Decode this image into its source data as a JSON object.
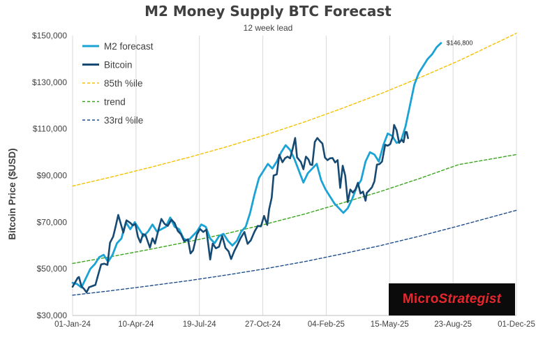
{
  "chart_data": {
    "type": "line",
    "title": "M2 Money Supply BTC Forecast",
    "subtitle": "12 week lead",
    "ylabel": "Bitcoin Price ($USD)",
    "xlabel": "",
    "ylim": [
      30000,
      150000
    ],
    "yticks": [
      30000,
      50000,
      70000,
      90000,
      110000,
      130000,
      150000
    ],
    "ytick_labels": [
      "$30,000",
      "$50,000",
      "$70,000",
      "$90,000",
      "$110,000",
      "$130,000",
      "$150,000"
    ],
    "xlim": [
      "2024-01-01",
      "2025-12-01"
    ],
    "xticks": [
      "2024-01-01",
      "2024-04-10",
      "2024-07-19",
      "2024-10-27",
      "2025-02-04",
      "2025-05-15",
      "2025-08-23",
      "2025-12-01"
    ],
    "xtick_labels": [
      "01-Jan-24",
      "10-Apr-24",
      "19-Jul-24",
      "27-Oct-24",
      "04-Feb-25",
      "15-May-25",
      "23-Aug-25",
      "01-Dec-25"
    ],
    "grid": "vertical",
    "legend_position": "top-left",
    "annotation": "$146,800",
    "series": [
      {
        "name": "M2 forecast",
        "color": "#1aa3d4",
        "style": "solid",
        "points": [
          [
            "2024-01-01",
            44000
          ],
          [
            "2024-01-08",
            43500
          ],
          [
            "2024-01-15",
            42000
          ],
          [
            "2024-01-22",
            46000
          ],
          [
            "2024-01-29",
            50000
          ],
          [
            "2024-02-05",
            52000
          ],
          [
            "2024-02-12",
            55000
          ],
          [
            "2024-02-19",
            56000
          ],
          [
            "2024-02-26",
            53000
          ],
          [
            "2024-03-04",
            56000
          ],
          [
            "2024-03-11",
            61000
          ],
          [
            "2024-03-18",
            63000
          ],
          [
            "2024-03-25",
            70000
          ],
          [
            "2024-04-01",
            67000
          ],
          [
            "2024-04-08",
            70000
          ],
          [
            "2024-04-15",
            67000
          ],
          [
            "2024-04-22",
            64000
          ],
          [
            "2024-04-29",
            66000
          ],
          [
            "2024-05-06",
            69000
          ],
          [
            "2024-05-13",
            66000
          ],
          [
            "2024-05-20",
            67000
          ],
          [
            "2024-05-27",
            68000
          ],
          [
            "2024-06-03",
            72000
          ],
          [
            "2024-06-10",
            68000
          ],
          [
            "2024-06-17",
            67000
          ],
          [
            "2024-06-24",
            63000
          ],
          [
            "2024-07-01",
            62000
          ],
          [
            "2024-07-08",
            64000
          ],
          [
            "2024-07-15",
            66000
          ],
          [
            "2024-07-22",
            69000
          ],
          [
            "2024-07-29",
            68000
          ],
          [
            "2024-08-05",
            63000
          ],
          [
            "2024-08-12",
            61000
          ],
          [
            "2024-08-19",
            64000
          ],
          [
            "2024-08-26",
            65000
          ],
          [
            "2024-09-02",
            62000
          ],
          [
            "2024-09-09",
            60000
          ],
          [
            "2024-09-16",
            62000
          ],
          [
            "2024-09-23",
            66000
          ],
          [
            "2024-09-30",
            68000
          ],
          [
            "2024-10-07",
            74000
          ],
          [
            "2024-10-14",
            82000
          ],
          [
            "2024-10-21",
            89000
          ],
          [
            "2024-10-28",
            92000
          ],
          [
            "2024-11-04",
            95000
          ],
          [
            "2024-11-11",
            93000
          ],
          [
            "2024-11-18",
            96000
          ],
          [
            "2024-11-25",
            100000
          ],
          [
            "2024-12-02",
            103000
          ],
          [
            "2024-12-09",
            101000
          ],
          [
            "2024-12-16",
            97000
          ],
          [
            "2024-12-23",
            92000
          ],
          [
            "2024-12-30",
            87000
          ],
          [
            "2025-01-06",
            91000
          ],
          [
            "2025-01-13",
            93000
          ],
          [
            "2025-01-20",
            95000
          ],
          [
            "2025-01-27",
            88000
          ],
          [
            "2025-02-03",
            84000
          ],
          [
            "2025-02-10",
            81000
          ],
          [
            "2025-02-17",
            78000
          ],
          [
            "2025-02-24",
            76000
          ],
          [
            "2025-03-03",
            74000
          ],
          [
            "2025-03-10",
            76000
          ],
          [
            "2025-03-17",
            80000
          ],
          [
            "2025-03-24",
            85000
          ],
          [
            "2025-03-31",
            88000
          ],
          [
            "2025-04-07",
            96000
          ],
          [
            "2025-04-14",
            100000
          ],
          [
            "2025-04-21",
            99000
          ],
          [
            "2025-04-28",
            96000
          ],
          [
            "2025-05-05",
            103000
          ],
          [
            "2025-05-12",
            108000
          ],
          [
            "2025-05-19",
            107000
          ],
          [
            "2025-05-26",
            104000
          ],
          [
            "2025-06-02",
            105000
          ],
          [
            "2025-06-09",
            111000
          ],
          [
            "2025-06-16",
            120000
          ],
          [
            "2025-06-23",
            129000
          ],
          [
            "2025-06-30",
            134000
          ],
          [
            "2025-07-07",
            137000
          ],
          [
            "2025-07-14",
            140000
          ],
          [
            "2025-07-21",
            142000
          ],
          [
            "2025-07-28",
            145000
          ],
          [
            "2025-08-04",
            146800
          ]
        ]
      },
      {
        "name": "Bitcoin",
        "color": "#174a72",
        "style": "solid",
        "points": [
          [
            "2024-01-01",
            42300
          ],
          [
            "2024-01-05",
            44200
          ],
          [
            "2024-01-09",
            46100
          ],
          [
            "2024-01-11",
            46500
          ],
          [
            "2024-01-15",
            42500
          ],
          [
            "2024-01-19",
            41400
          ],
          [
            "2024-01-23",
            39900
          ],
          [
            "2024-01-27",
            42100
          ],
          [
            "2024-02-01",
            42600
          ],
          [
            "2024-02-06",
            43100
          ],
          [
            "2024-02-10",
            47100
          ],
          [
            "2024-02-15",
            51900
          ],
          [
            "2024-02-20",
            52200
          ],
          [
            "2024-02-25",
            51700
          ],
          [
            "2024-02-29",
            61200
          ],
          [
            "2024-03-05",
            63800
          ],
          [
            "2024-03-09",
            68300
          ],
          [
            "2024-03-13",
            73100
          ],
          [
            "2024-03-18",
            68400
          ],
          [
            "2024-03-21",
            65500
          ],
          [
            "2024-03-26",
            70800
          ],
          [
            "2024-04-01",
            69700
          ],
          [
            "2024-04-05",
            68600
          ],
          [
            "2024-04-09",
            69200
          ],
          [
            "2024-04-13",
            63800
          ],
          [
            "2024-04-17",
            61300
          ],
          [
            "2024-04-21",
            64900
          ],
          [
            "2024-04-25",
            64500
          ],
          [
            "2024-04-30",
            60600
          ],
          [
            "2024-05-02",
            59100
          ],
          [
            "2024-05-06",
            63100
          ],
          [
            "2024-05-10",
            60800
          ],
          [
            "2024-05-15",
            66300
          ],
          [
            "2024-05-20",
            71400
          ],
          [
            "2024-05-25",
            69300
          ],
          [
            "2024-05-30",
            68400
          ],
          [
            "2024-06-05",
            71100
          ],
          [
            "2024-06-10",
            69600
          ],
          [
            "2024-06-15",
            66200
          ],
          [
            "2024-06-20",
            64800
          ],
          [
            "2024-06-25",
            61800
          ],
          [
            "2024-07-01",
            62700
          ],
          [
            "2024-07-05",
            56600
          ],
          [
            "2024-07-09",
            57900
          ],
          [
            "2024-07-15",
            64700
          ],
          [
            "2024-07-20",
            67100
          ],
          [
            "2024-07-25",
            65800
          ],
          [
            "2024-07-30",
            66800
          ],
          [
            "2024-08-05",
            54000
          ],
          [
            "2024-08-09",
            60800
          ],
          [
            "2024-08-14",
            58800
          ],
          [
            "2024-08-19",
            59500
          ],
          [
            "2024-08-24",
            64100
          ],
          [
            "2024-08-29",
            59000
          ],
          [
            "2024-09-03",
            57500
          ],
          [
            "2024-09-07",
            54200
          ],
          [
            "2024-09-12",
            57600
          ],
          [
            "2024-09-17",
            60300
          ],
          [
            "2024-09-22",
            63200
          ],
          [
            "2024-09-28",
            65800
          ],
          [
            "2024-10-03",
            60700
          ],
          [
            "2024-10-08",
            62200
          ],
          [
            "2024-10-14",
            66000
          ],
          [
            "2024-10-19",
            68400
          ],
          [
            "2024-10-24",
            68200
          ],
          [
            "2024-10-29",
            72700
          ],
          [
            "2024-11-03",
            68800
          ],
          [
            "2024-11-06",
            75600
          ],
          [
            "2024-11-10",
            80500
          ],
          [
            "2024-11-13",
            90000
          ],
          [
            "2024-11-18",
            90500
          ],
          [
            "2024-11-22",
            98900
          ],
          [
            "2024-11-27",
            95700
          ],
          [
            "2024-12-01",
            97400
          ],
          [
            "2024-12-05",
            98100
          ],
          [
            "2024-12-09",
            97400
          ],
          [
            "2024-12-13",
            101400
          ],
          [
            "2024-12-17",
            106100
          ],
          [
            "2024-12-20",
            97800
          ],
          [
            "2024-12-26",
            95800
          ],
          [
            "2024-12-30",
            92700
          ],
          [
            "2025-01-03",
            98100
          ],
          [
            "2025-01-07",
            96900
          ],
          [
            "2025-01-10",
            94700
          ],
          [
            "2025-01-13",
            94500
          ],
          [
            "2025-01-17",
            104400
          ],
          [
            "2025-01-21",
            106100
          ],
          [
            "2025-01-25",
            104800
          ],
          [
            "2025-01-29",
            103700
          ],
          [
            "2025-02-02",
            97700
          ],
          [
            "2025-02-06",
            96600
          ],
          [
            "2025-02-10",
            97400
          ],
          [
            "2025-02-14",
            97500
          ],
          [
            "2025-02-18",
            95600
          ],
          [
            "2025-02-22",
            96600
          ],
          [
            "2025-02-26",
            84700
          ],
          [
            "2025-03-02",
            94200
          ],
          [
            "2025-03-06",
            89900
          ],
          [
            "2025-03-10",
            78600
          ],
          [
            "2025-03-14",
            84000
          ],
          [
            "2025-03-18",
            82700
          ],
          [
            "2025-03-22",
            84000
          ],
          [
            "2025-03-26",
            86900
          ],
          [
            "2025-03-30",
            82300
          ],
          [
            "2025-04-03",
            83100
          ],
          [
            "2025-04-07",
            79200
          ],
          [
            "2025-04-09",
            82600
          ],
          [
            "2025-04-13",
            83700
          ],
          [
            "2025-04-17",
            84900
          ],
          [
            "2025-04-21",
            87500
          ],
          [
            "2025-04-25",
            94700
          ],
          [
            "2025-04-29",
            94900
          ],
          [
            "2025-05-03",
            96000
          ],
          [
            "2025-05-08",
            103200
          ],
          [
            "2025-05-12",
            102800
          ],
          [
            "2025-05-16",
            103500
          ],
          [
            "2025-05-20",
            106800
          ],
          [
            "2025-05-22",
            111700
          ],
          [
            "2025-05-26",
            109400
          ],
          [
            "2025-05-30",
            104000
          ],
          [
            "2025-06-03",
            105400
          ],
          [
            "2025-06-06",
            104300
          ],
          [
            "2025-06-09",
            108700
          ],
          [
            "2025-06-11",
            108600
          ],
          [
            "2025-06-13",
            106000
          ]
        ]
      },
      {
        "name": "85th %ile",
        "color": "#f5c000",
        "style": "dashed",
        "points": [
          [
            "2024-01-01",
            85500
          ],
          [
            "2024-03-01",
            89300
          ],
          [
            "2024-05-01",
            93400
          ],
          [
            "2024-07-01",
            97700
          ],
          [
            "2024-09-01",
            102400
          ],
          [
            "2024-11-01",
            107500
          ],
          [
            "2025-01-01",
            113000
          ],
          [
            "2025-03-01",
            118800
          ],
          [
            "2025-05-01",
            125100
          ],
          [
            "2025-07-01",
            131900
          ],
          [
            "2025-09-01",
            139200
          ],
          [
            "2025-10-15",
            144900
          ],
          [
            "2025-12-01",
            151000
          ]
        ]
      },
      {
        "name": "trend",
        "color": "#3aa51d",
        "style": "dashed",
        "points": [
          [
            "2024-01-01",
            52300
          ],
          [
            "2024-03-01",
            55200
          ],
          [
            "2024-05-01",
            58300
          ],
          [
            "2024-07-01",
            61600
          ],
          [
            "2024-09-01",
            65200
          ],
          [
            "2024-11-01",
            69200
          ],
          [
            "2025-01-01",
            73500
          ],
          [
            "2025-03-01",
            78200
          ],
          [
            "2025-05-01",
            83200
          ],
          [
            "2025-07-01",
            88700
          ],
          [
            "2025-09-01",
            94700
          ],
          [
            "2025-12-01",
            99000
          ]
        ]
      },
      {
        "name": "33rd %ile",
        "color": "#1f4e8c",
        "style": "dashed",
        "points": [
          [
            "2024-01-01",
            38700
          ],
          [
            "2024-03-01",
            40600
          ],
          [
            "2024-05-01",
            42700
          ],
          [
            "2024-07-01",
            44900
          ],
          [
            "2024-09-01",
            47400
          ],
          [
            "2024-11-01",
            50100
          ],
          [
            "2025-01-01",
            53100
          ],
          [
            "2025-03-01",
            56400
          ],
          [
            "2025-05-01",
            60000
          ],
          [
            "2025-07-01",
            64000
          ],
          [
            "2025-09-01",
            68400
          ],
          [
            "2025-12-01",
            75100
          ]
        ]
      }
    ]
  }
}
